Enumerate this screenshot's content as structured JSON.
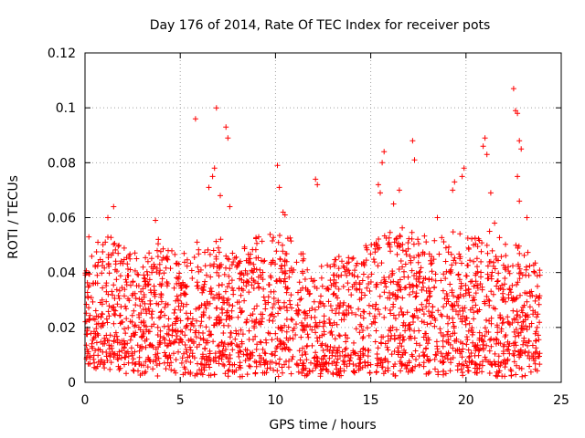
{
  "chart_data": {
    "type": "scatter",
    "title": "Day 176 of 2014, Rate Of TEC Index for receiver pots",
    "xlabel": "GPS time / hours",
    "ylabel": "ROTI / TECUs",
    "xlim": [
      0,
      25
    ],
    "ylim": [
      0,
      0.12
    ],
    "x_ticks": [
      0,
      5,
      10,
      15,
      20,
      25
    ],
    "x_tick_labels": [
      "0",
      "5",
      "10",
      "15",
      "20",
      "25"
    ],
    "y_ticks": [
      0,
      0.02,
      0.04,
      0.06,
      0.08,
      0.1,
      0.12
    ],
    "y_tick_labels": [
      "0",
      "0.02",
      "0.04",
      "0.06",
      "0.08",
      "0.1",
      "0.12"
    ],
    "grid": true,
    "marker": "+",
    "color": "#ff0000",
    "data_range_x": [
      0,
      23.9
    ],
    "series": [
      {
        "name": "ROTI",
        "envelope": {
          "hours": [
            0,
            1,
            2,
            3,
            4,
            5,
            6,
            7,
            8,
            9,
            10,
            11,
            12,
            13,
            14,
            15,
            16,
            17,
            18,
            19,
            20,
            21,
            22,
            23,
            23.9
          ],
          "base": [
            0.012,
            0.013,
            0.011,
            0.01,
            0.01,
            0.01,
            0.01,
            0.01,
            0.01,
            0.01,
            0.01,
            0.01,
            0.01,
            0.01,
            0.01,
            0.01,
            0.01,
            0.01,
            0.01,
            0.01,
            0.01,
            0.01,
            0.01,
            0.01,
            0.01
          ],
          "upper": [
            0.042,
            0.055,
            0.05,
            0.045,
            0.052,
            0.048,
            0.05,
            0.05,
            0.048,
            0.052,
            0.058,
            0.052,
            0.04,
            0.044,
            0.048,
            0.052,
            0.056,
            0.055,
            0.052,
            0.055,
            0.052,
            0.055,
            0.05,
            0.052,
            0.04
          ]
        },
        "outliers": [
          [
            0.2,
            0.053
          ],
          [
            1.2,
            0.06
          ],
          [
            1.5,
            0.064
          ],
          [
            3.7,
            0.059
          ],
          [
            5.8,
            0.096
          ],
          [
            6.5,
            0.071
          ],
          [
            6.7,
            0.075
          ],
          [
            6.8,
            0.078
          ],
          [
            6.9,
            0.1
          ],
          [
            7.1,
            0.068
          ],
          [
            7.4,
            0.093
          ],
          [
            7.5,
            0.089
          ],
          [
            7.6,
            0.064
          ],
          [
            10.1,
            0.079
          ],
          [
            10.2,
            0.071
          ],
          [
            10.4,
            0.062
          ],
          [
            10.5,
            0.061
          ],
          [
            12.1,
            0.074
          ],
          [
            12.2,
            0.072
          ],
          [
            15.4,
            0.072
          ],
          [
            15.5,
            0.069
          ],
          [
            15.6,
            0.08
          ],
          [
            15.7,
            0.084
          ],
          [
            16.2,
            0.065
          ],
          [
            16.5,
            0.07
          ],
          [
            17.2,
            0.088
          ],
          [
            17.3,
            0.081
          ],
          [
            18.5,
            0.06
          ],
          [
            19.3,
            0.07
          ],
          [
            19.4,
            0.073
          ],
          [
            19.8,
            0.075
          ],
          [
            19.9,
            0.078
          ],
          [
            20.9,
            0.086
          ],
          [
            21.0,
            0.089
          ],
          [
            21.1,
            0.083
          ],
          [
            21.3,
            0.069
          ],
          [
            21.5,
            0.058
          ],
          [
            22.5,
            0.107
          ],
          [
            22.6,
            0.099
          ],
          [
            22.7,
            0.098
          ],
          [
            22.8,
            0.088
          ],
          [
            22.9,
            0.085
          ],
          [
            22.7,
            0.075
          ],
          [
            22.8,
            0.066
          ],
          [
            23.2,
            0.06
          ]
        ]
      }
    ]
  }
}
